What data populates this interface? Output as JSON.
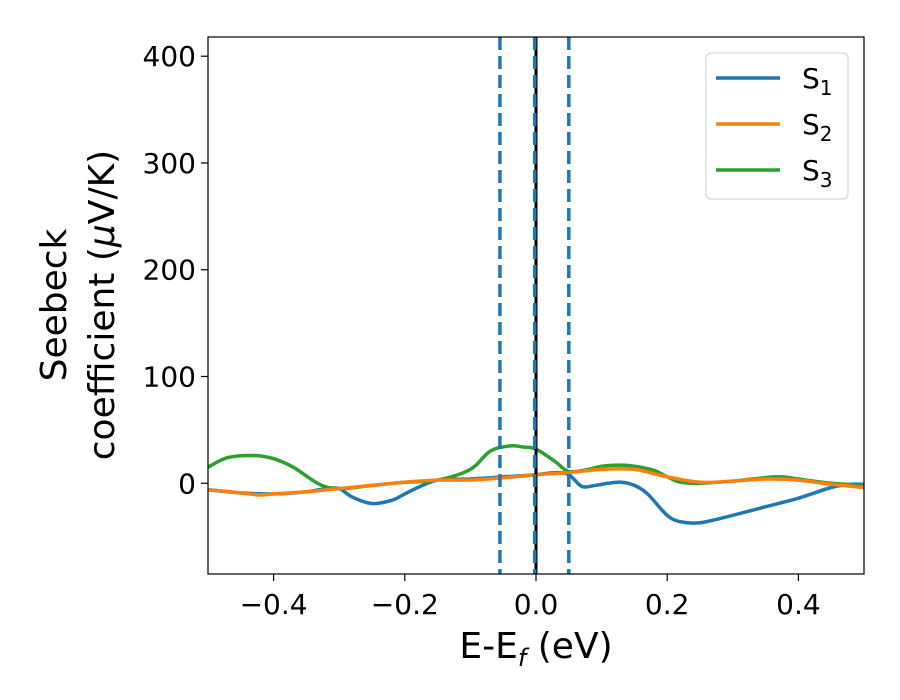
{
  "chart_data": {
    "type": "line",
    "xlabel": "E-E",
    "xlabel_sub": "f",
    "xlabel_unit": " (eV)",
    "ylabel_line1": "Seebeck",
    "ylabel_line2_a": "coefficient  (",
    "ylabel_mu": "μ",
    "ylabel_line2_b": "V/K)",
    "xlim": [
      -0.5,
      0.5
    ],
    "ylim": [
      -85,
      418
    ],
    "xticks": [
      -0.4,
      -0.2,
      0.0,
      0.2,
      0.4
    ],
    "xtick_labels": [
      "−0.4",
      "−0.2",
      "0.0",
      "0.2",
      "0.4"
    ],
    "yticks": [
      0,
      100,
      200,
      300,
      400
    ],
    "ytick_labels": [
      "0",
      "100",
      "200",
      "300",
      "400"
    ],
    "legend_position": "top-right",
    "grid": false,
    "series": [
      {
        "name": "S",
        "sub": "1",
        "color": "#1f77b4",
        "x": [
          -0.5,
          -0.45,
          -0.4,
          -0.35,
          -0.32,
          -0.3,
          -0.28,
          -0.25,
          -0.22,
          -0.2,
          -0.18,
          -0.15,
          -0.1,
          -0.05,
          0.0,
          0.03,
          0.05,
          0.07,
          0.09,
          0.11,
          0.13,
          0.15,
          0.17,
          0.2,
          0.22,
          0.25,
          0.3,
          0.35,
          0.4,
          0.45,
          0.48,
          0.5
        ],
        "y": [
          -6,
          -9,
          -10,
          -8,
          -5,
          -5,
          -13,
          -19,
          -16,
          -10,
          -4,
          3,
          4,
          6,
          8,
          10,
          8,
          -3,
          -2,
          0,
          1,
          -2,
          -10,
          -30,
          -36,
          -37,
          -30,
          -22,
          -14,
          -4,
          -1,
          -1
        ]
      },
      {
        "name": "S",
        "sub": "2",
        "color": "#ff7f0e",
        "x": [
          -0.5,
          -0.45,
          -0.42,
          -0.4,
          -0.35,
          -0.3,
          -0.25,
          -0.2,
          -0.15,
          -0.1,
          -0.05,
          0.0,
          0.05,
          0.1,
          0.15,
          0.2,
          0.25,
          0.3,
          0.35,
          0.4,
          0.45,
          0.5
        ],
        "y": [
          -6,
          -9,
          -11,
          -10,
          -8,
          -5,
          -2,
          1,
          3,
          3,
          5,
          8,
          10,
          13,
          13,
          6,
          1,
          2,
          4,
          3,
          -1,
          -4
        ]
      },
      {
        "name": "S",
        "sub": "3",
        "color": "#2ca02c",
        "x": [
          -0.5,
          -0.47,
          -0.43,
          -0.4,
          -0.37,
          -0.33,
          -0.3,
          -0.25,
          -0.2,
          -0.15,
          -0.1,
          -0.07,
          -0.04,
          -0.02,
          0.0,
          0.03,
          0.05,
          0.08,
          0.1,
          0.13,
          0.15,
          0.18,
          0.2,
          0.22,
          0.25,
          0.3,
          0.33,
          0.37,
          0.4,
          0.45,
          0.5
        ],
        "y": [
          15,
          24,
          26,
          23,
          15,
          -1,
          -5,
          -2,
          1,
          3,
          13,
          30,
          35,
          34,
          32,
          20,
          11,
          13,
          16,
          17,
          16,
          12,
          6,
          1,
          0,
          2,
          4,
          6,
          4,
          0,
          -2
        ]
      }
    ],
    "vlines": [
      {
        "x": -0.055,
        "color": "#1f77b4",
        "style": "dashed"
      },
      {
        "x": 0.05,
        "color": "#1f77b4",
        "style": "dashed"
      },
      {
        "x": 0.0,
        "color": "#000000",
        "style": "solid"
      },
      {
        "x": -0.002,
        "color": "#1f77b4",
        "style": "dashed"
      }
    ]
  }
}
